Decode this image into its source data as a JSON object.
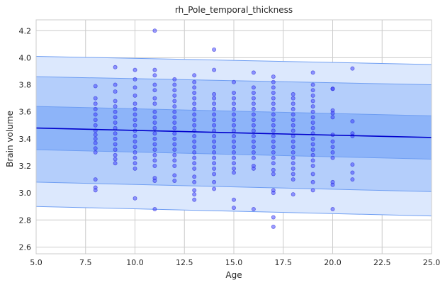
{
  "chart_data": {
    "type": "scatter",
    "title": "rh_Pole_temporal_thickness",
    "xlabel": "Age",
    "ylabel": "Brain volume",
    "xlim": [
      5.0,
      25.0
    ],
    "ylim": [
      2.55,
      4.28
    ],
    "xticks": [
      5.0,
      7.5,
      10.0,
      12.5,
      15.0,
      17.5,
      20.0,
      22.5,
      25.0
    ],
    "xtick_labels": [
      "5.0",
      "7.5",
      "10.0",
      "12.5",
      "15.0",
      "17.5",
      "20.0",
      "22.5",
      "25.0"
    ],
    "yticks": [
      2.6,
      2.8,
      3.0,
      3.2,
      3.4,
      3.6,
      3.8,
      4.0,
      4.2
    ],
    "ytick_labels": [
      "2.6",
      "2.8",
      "3.0",
      "3.2",
      "3.4",
      "3.6",
      "3.8",
      "4.0",
      "4.2"
    ],
    "grid": true,
    "trend_line": {
      "x": [
        5.0,
        25.0
      ],
      "y": [
        3.48,
        3.41
      ],
      "color": "#0000cc"
    },
    "bands": [
      {
        "lower": [
          2.9,
          2.83
        ],
        "upper": [
          4.01,
          3.95
        ],
        "color": "#dce8fd"
      },
      {
        "lower": [
          3.08,
          3.01
        ],
        "upper": [
          3.86,
          3.8
        ],
        "color": "#b4cefb"
      },
      {
        "lower": [
          3.32,
          3.25
        ],
        "upper": [
          3.64,
          3.57
        ],
        "color": "#8db4f9"
      }
    ],
    "point_color": "#3b3bff",
    "points": [
      {
        "x": 8,
        "y": 3.79
      },
      {
        "x": 8,
        "y": 3.7
      },
      {
        "x": 8,
        "y": 3.66
      },
      {
        "x": 8,
        "y": 3.62
      },
      {
        "x": 8,
        "y": 3.58
      },
      {
        "x": 8,
        "y": 3.54
      },
      {
        "x": 8,
        "y": 3.5
      },
      {
        "x": 8,
        "y": 3.46
      },
      {
        "x": 8,
        "y": 3.43
      },
      {
        "x": 8,
        "y": 3.4
      },
      {
        "x": 8,
        "y": 3.37
      },
      {
        "x": 8,
        "y": 3.33
      },
      {
        "x": 8,
        "y": 3.3
      },
      {
        "x": 8,
        "y": 3.1
      },
      {
        "x": 8,
        "y": 3.04
      },
      {
        "x": 8,
        "y": 3.02
      },
      {
        "x": 9,
        "y": 3.93
      },
      {
        "x": 9,
        "y": 3.8
      },
      {
        "x": 9,
        "y": 3.75
      },
      {
        "x": 9,
        "y": 3.68
      },
      {
        "x": 9,
        "y": 3.64
      },
      {
        "x": 9,
        "y": 3.6
      },
      {
        "x": 9,
        "y": 3.56
      },
      {
        "x": 9,
        "y": 3.52
      },
      {
        "x": 9,
        "y": 3.48
      },
      {
        "x": 9,
        "y": 3.44
      },
      {
        "x": 9,
        "y": 3.4
      },
      {
        "x": 9,
        "y": 3.36
      },
      {
        "x": 9,
        "y": 3.32
      },
      {
        "x": 9,
        "y": 3.28
      },
      {
        "x": 9,
        "y": 3.25
      },
      {
        "x": 9,
        "y": 3.22
      },
      {
        "x": 10,
        "y": 3.91
      },
      {
        "x": 10,
        "y": 3.84
      },
      {
        "x": 10,
        "y": 3.78
      },
      {
        "x": 10,
        "y": 3.72
      },
      {
        "x": 10,
        "y": 3.66
      },
      {
        "x": 10,
        "y": 3.62
      },
      {
        "x": 10,
        "y": 3.58
      },
      {
        "x": 10,
        "y": 3.54
      },
      {
        "x": 10,
        "y": 3.5
      },
      {
        "x": 10,
        "y": 3.46
      },
      {
        "x": 10,
        "y": 3.42
      },
      {
        "x": 10,
        "y": 3.38
      },
      {
        "x": 10,
        "y": 3.34
      },
      {
        "x": 10,
        "y": 3.3
      },
      {
        "x": 10,
        "y": 3.26
      },
      {
        "x": 10,
        "y": 3.22
      },
      {
        "x": 10,
        "y": 3.18
      },
      {
        "x": 10,
        "y": 2.96
      },
      {
        "x": 11,
        "y": 4.2
      },
      {
        "x": 11,
        "y": 3.91
      },
      {
        "x": 11,
        "y": 3.87
      },
      {
        "x": 11,
        "y": 3.8
      },
      {
        "x": 11,
        "y": 3.76
      },
      {
        "x": 11,
        "y": 3.7
      },
      {
        "x": 11,
        "y": 3.66
      },
      {
        "x": 11,
        "y": 3.6
      },
      {
        "x": 11,
        "y": 3.56
      },
      {
        "x": 11,
        "y": 3.52
      },
      {
        "x": 11,
        "y": 3.48
      },
      {
        "x": 11,
        "y": 3.44
      },
      {
        "x": 11,
        "y": 3.4
      },
      {
        "x": 11,
        "y": 3.36
      },
      {
        "x": 11,
        "y": 3.32
      },
      {
        "x": 11,
        "y": 3.28
      },
      {
        "x": 11,
        "y": 3.24
      },
      {
        "x": 11,
        "y": 3.2
      },
      {
        "x": 11,
        "y": 3.11
      },
      {
        "x": 11,
        "y": 3.09
      },
      {
        "x": 11,
        "y": 2.88
      },
      {
        "x": 12,
        "y": 3.84
      },
      {
        "x": 12,
        "y": 3.8
      },
      {
        "x": 12,
        "y": 3.76
      },
      {
        "x": 12,
        "y": 3.72
      },
      {
        "x": 12,
        "y": 3.68
      },
      {
        "x": 12,
        "y": 3.64
      },
      {
        "x": 12,
        "y": 3.6
      },
      {
        "x": 12,
        "y": 3.56
      },
      {
        "x": 12,
        "y": 3.52
      },
      {
        "x": 12,
        "y": 3.48
      },
      {
        "x": 12,
        "y": 3.44
      },
      {
        "x": 12,
        "y": 3.4
      },
      {
        "x": 12,
        "y": 3.36
      },
      {
        "x": 12,
        "y": 3.32
      },
      {
        "x": 12,
        "y": 3.28
      },
      {
        "x": 12,
        "y": 3.24
      },
      {
        "x": 12,
        "y": 3.2
      },
      {
        "x": 12,
        "y": 3.13
      },
      {
        "x": 12,
        "y": 3.09
      },
      {
        "x": 13,
        "y": 3.87
      },
      {
        "x": 13,
        "y": 3.82
      },
      {
        "x": 13,
        "y": 3.78
      },
      {
        "x": 13,
        "y": 3.74
      },
      {
        "x": 13,
        "y": 3.7
      },
      {
        "x": 13,
        "y": 3.66
      },
      {
        "x": 13,
        "y": 3.62
      },
      {
        "x": 13,
        "y": 3.58
      },
      {
        "x": 13,
        "y": 3.54
      },
      {
        "x": 13,
        "y": 3.5
      },
      {
        "x": 13,
        "y": 3.46
      },
      {
        "x": 13,
        "y": 3.42
      },
      {
        "x": 13,
        "y": 3.38
      },
      {
        "x": 13,
        "y": 3.34
      },
      {
        "x": 13,
        "y": 3.3
      },
      {
        "x": 13,
        "y": 3.26
      },
      {
        "x": 13,
        "y": 3.22
      },
      {
        "x": 13,
        "y": 3.18
      },
      {
        "x": 13,
        "y": 3.12
      },
      {
        "x": 13,
        "y": 3.08
      },
      {
        "x": 13,
        "y": 3.02
      },
      {
        "x": 13,
        "y": 2.99
      },
      {
        "x": 13,
        "y": 2.95
      },
      {
        "x": 14,
        "y": 4.06
      },
      {
        "x": 14,
        "y": 3.91
      },
      {
        "x": 14,
        "y": 3.73
      },
      {
        "x": 14,
        "y": 3.7
      },
      {
        "x": 14,
        "y": 3.66
      },
      {
        "x": 14,
        "y": 3.62
      },
      {
        "x": 14,
        "y": 3.58
      },
      {
        "x": 14,
        "y": 3.54
      },
      {
        "x": 14,
        "y": 3.5
      },
      {
        "x": 14,
        "y": 3.46
      },
      {
        "x": 14,
        "y": 3.42
      },
      {
        "x": 14,
        "y": 3.38
      },
      {
        "x": 14,
        "y": 3.34
      },
      {
        "x": 14,
        "y": 3.3
      },
      {
        "x": 14,
        "y": 3.26
      },
      {
        "x": 14,
        "y": 3.22
      },
      {
        "x": 14,
        "y": 3.18
      },
      {
        "x": 14,
        "y": 3.14
      },
      {
        "x": 14,
        "y": 3.08
      },
      {
        "x": 14,
        "y": 3.03
      },
      {
        "x": 15,
        "y": 3.82
      },
      {
        "x": 15,
        "y": 3.74
      },
      {
        "x": 15,
        "y": 3.7
      },
      {
        "x": 15,
        "y": 3.66
      },
      {
        "x": 15,
        "y": 3.62
      },
      {
        "x": 15,
        "y": 3.58
      },
      {
        "x": 15,
        "y": 3.54
      },
      {
        "x": 15,
        "y": 3.5
      },
      {
        "x": 15,
        "y": 3.46
      },
      {
        "x": 15,
        "y": 3.42
      },
      {
        "x": 15,
        "y": 3.38
      },
      {
        "x": 15,
        "y": 3.34
      },
      {
        "x": 15,
        "y": 3.3
      },
      {
        "x": 15,
        "y": 3.26
      },
      {
        "x": 15,
        "y": 3.22
      },
      {
        "x": 15,
        "y": 3.18
      },
      {
        "x": 15,
        "y": 3.15
      },
      {
        "x": 15,
        "y": 2.95
      },
      {
        "x": 15,
        "y": 2.89
      },
      {
        "x": 16,
        "y": 3.89
      },
      {
        "x": 16,
        "y": 3.78
      },
      {
        "x": 16,
        "y": 3.74
      },
      {
        "x": 16,
        "y": 3.7
      },
      {
        "x": 16,
        "y": 3.66
      },
      {
        "x": 16,
        "y": 3.62
      },
      {
        "x": 16,
        "y": 3.58
      },
      {
        "x": 16,
        "y": 3.54
      },
      {
        "x": 16,
        "y": 3.5
      },
      {
        "x": 16,
        "y": 3.46
      },
      {
        "x": 16,
        "y": 3.42
      },
      {
        "x": 16,
        "y": 3.38
      },
      {
        "x": 16,
        "y": 3.34
      },
      {
        "x": 16,
        "y": 3.3
      },
      {
        "x": 16,
        "y": 3.26
      },
      {
        "x": 16,
        "y": 3.2
      },
      {
        "x": 16,
        "y": 3.18
      },
      {
        "x": 16,
        "y": 2.88
      },
      {
        "x": 17,
        "y": 3.86
      },
      {
        "x": 17,
        "y": 3.82
      },
      {
        "x": 17,
        "y": 3.78
      },
      {
        "x": 17,
        "y": 3.74
      },
      {
        "x": 17,
        "y": 3.7
      },
      {
        "x": 17,
        "y": 3.66
      },
      {
        "x": 17,
        "y": 3.62
      },
      {
        "x": 17,
        "y": 3.58
      },
      {
        "x": 17,
        "y": 3.54
      },
      {
        "x": 17,
        "y": 3.5
      },
      {
        "x": 17,
        "y": 3.46
      },
      {
        "x": 17,
        "y": 3.42
      },
      {
        "x": 17,
        "y": 3.38
      },
      {
        "x": 17,
        "y": 3.34
      },
      {
        "x": 17,
        "y": 3.3
      },
      {
        "x": 17,
        "y": 3.26
      },
      {
        "x": 17,
        "y": 3.22
      },
      {
        "x": 17,
        "y": 3.17
      },
      {
        "x": 17,
        "y": 3.14
      },
      {
        "x": 17,
        "y": 3.02
      },
      {
        "x": 17,
        "y": 3.0
      },
      {
        "x": 17,
        "y": 2.82
      },
      {
        "x": 17,
        "y": 2.75
      },
      {
        "x": 18,
        "y": 3.73
      },
      {
        "x": 18,
        "y": 3.7
      },
      {
        "x": 18,
        "y": 3.66
      },
      {
        "x": 18,
        "y": 3.62
      },
      {
        "x": 18,
        "y": 3.58
      },
      {
        "x": 18,
        "y": 3.54
      },
      {
        "x": 18,
        "y": 3.5
      },
      {
        "x": 18,
        "y": 3.46
      },
      {
        "x": 18,
        "y": 3.42
      },
      {
        "x": 18,
        "y": 3.38
      },
      {
        "x": 18,
        "y": 3.34
      },
      {
        "x": 18,
        "y": 3.3
      },
      {
        "x": 18,
        "y": 3.26
      },
      {
        "x": 18,
        "y": 3.22
      },
      {
        "x": 18,
        "y": 3.18
      },
      {
        "x": 18,
        "y": 3.14
      },
      {
        "x": 18,
        "y": 3.1
      },
      {
        "x": 18,
        "y": 2.99
      },
      {
        "x": 19,
        "y": 3.89
      },
      {
        "x": 19,
        "y": 3.8
      },
      {
        "x": 19,
        "y": 3.76
      },
      {
        "x": 19,
        "y": 3.72
      },
      {
        "x": 19,
        "y": 3.68
      },
      {
        "x": 19,
        "y": 3.64
      },
      {
        "x": 19,
        "y": 3.6
      },
      {
        "x": 19,
        "y": 3.56
      },
      {
        "x": 19,
        "y": 3.52
      },
      {
        "x": 19,
        "y": 3.48
      },
      {
        "x": 19,
        "y": 3.44
      },
      {
        "x": 19,
        "y": 3.4
      },
      {
        "x": 19,
        "y": 3.36
      },
      {
        "x": 19,
        "y": 3.32
      },
      {
        "x": 19,
        "y": 3.28
      },
      {
        "x": 19,
        "y": 3.24
      },
      {
        "x": 19,
        "y": 3.2
      },
      {
        "x": 19,
        "y": 3.14
      },
      {
        "x": 19,
        "y": 3.08
      },
      {
        "x": 19,
        "y": 3.02
      },
      {
        "x": 20,
        "y": 3.77
      },
      {
        "x": 20,
        "y": 3.77
      },
      {
        "x": 20,
        "y": 3.61
      },
      {
        "x": 20,
        "y": 3.59
      },
      {
        "x": 20,
        "y": 3.56
      },
      {
        "x": 20,
        "y": 3.43
      },
      {
        "x": 20,
        "y": 3.38
      },
      {
        "x": 20,
        "y": 3.34
      },
      {
        "x": 20,
        "y": 3.3
      },
      {
        "x": 20,
        "y": 3.26
      },
      {
        "x": 20,
        "y": 3.08
      },
      {
        "x": 20,
        "y": 3.06
      },
      {
        "x": 20,
        "y": 2.88
      },
      {
        "x": 21,
        "y": 3.92
      },
      {
        "x": 21,
        "y": 3.53
      },
      {
        "x": 21,
        "y": 3.44
      },
      {
        "x": 21,
        "y": 3.42
      },
      {
        "x": 21,
        "y": 3.21
      },
      {
        "x": 21,
        "y": 3.15
      },
      {
        "x": 21,
        "y": 3.1
      }
    ]
  }
}
